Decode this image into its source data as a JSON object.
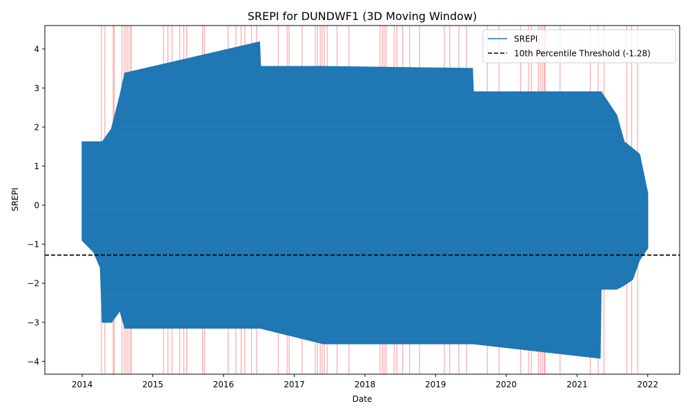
{
  "chart_data": {
    "type": "line",
    "title": "SREPI for DUNDWF1 (3D Moving Window)",
    "xlabel": "Date",
    "ylabel": "SREPI",
    "xlim": [
      "2013-06-22",
      "2022-06-15"
    ],
    "ylim": [
      -4.33,
      4.6
    ],
    "x_ticks": [
      "2014",
      "2015",
      "2016",
      "2017",
      "2018",
      "2019",
      "2020",
      "2021",
      "2022"
    ],
    "y_ticks": [
      -4,
      -3,
      -2,
      -1,
      0,
      1,
      2,
      3,
      4
    ],
    "grid": false,
    "legend": {
      "placement": "top-right",
      "entries": [
        "SREPI",
        "10th Percentile Threshold (-1.28)"
      ]
    },
    "colors": {
      "series": "#1f77b4",
      "threshold": "#000000",
      "highlight": "#ff0000"
    },
    "series": [
      {
        "name": "SREPI",
        "style": "solid",
        "envelope": [
          {
            "x": "2014-01-01",
            "low": -0.9,
            "high": 1.62
          },
          {
            "x": "2014-03-01",
            "low": -1.2,
            "high": 1.62
          },
          {
            "x": "2014-04-05",
            "low": -1.6,
            "high": 1.62
          },
          {
            "x": "2014-04-15",
            "low": -3.0,
            "high": 1.62
          },
          {
            "x": "2014-06-01",
            "low": -3.0,
            "high": 1.95
          },
          {
            "x": "2014-07-15",
            "low": -2.7,
            "high": 2.8
          },
          {
            "x": "2014-08-10",
            "low": -3.15,
            "high": 3.38
          },
          {
            "x": "2016-07-05",
            "low": -3.15,
            "high": 4.18
          },
          {
            "x": "2016-07-10",
            "low": -3.15,
            "high": 3.55
          },
          {
            "x": "2017-06-01",
            "low": -3.55,
            "high": 3.55
          },
          {
            "x": "2019-07-10",
            "low": -3.55,
            "high": 3.5
          },
          {
            "x": "2019-07-15",
            "low": -3.55,
            "high": 2.9
          },
          {
            "x": "2021-04-30",
            "low": -3.92,
            "high": 2.9
          },
          {
            "x": "2021-05-05",
            "low": -2.15,
            "high": 2.9
          },
          {
            "x": "2021-07-25",
            "low": -2.15,
            "high": 2.3
          },
          {
            "x": "2021-09-01",
            "low": -2.05,
            "high": 1.62
          },
          {
            "x": "2021-10-15",
            "low": -1.9,
            "high": 1.45
          },
          {
            "x": "2021-11-20",
            "low": -1.4,
            "high": 1.3
          },
          {
            "x": "2022-01-01",
            "low": -1.1,
            "high": 0.3
          }
        ]
      },
      {
        "name": "10th Percentile Threshold (-1.28)",
        "style": "dashed",
        "y": -1.28
      }
    ],
    "highlighted_dates": [
      "2014-04-10",
      "2014-04-28",
      "2014-06-10",
      "2014-06-15",
      "2014-07-25",
      "2014-08-05",
      "2014-08-15",
      "2014-08-25",
      "2014-09-05",
      "2014-09-12",
      "2015-02-25",
      "2015-03-20",
      "2015-04-10",
      "2015-05-20",
      "2015-06-10",
      "2015-06-25",
      "2015-09-15",
      "2015-09-25",
      "2016-01-25",
      "2016-03-05",
      "2016-04-01",
      "2016-04-20",
      "2016-05-25",
      "2016-06-20",
      "2016-10-10",
      "2016-11-25",
      "2016-12-05",
      "2017-02-10",
      "2017-04-20",
      "2017-05-01",
      "2017-05-15",
      "2017-05-25",
      "2017-06-05",
      "2017-06-20",
      "2017-08-10",
      "2017-10-10",
      "2018-03-20",
      "2018-04-01",
      "2018-04-10",
      "2018-04-20",
      "2018-06-01",
      "2018-06-15",
      "2018-07-15",
      "2018-08-20",
      "2018-10-10",
      "2019-02-15",
      "2019-03-15",
      "2019-05-01",
      "2019-06-10",
      "2019-09-25",
      "2019-11-25",
      "2020-03-15",
      "2020-04-25",
      "2020-05-10",
      "2020-06-15",
      "2020-06-25",
      "2020-07-05",
      "2020-07-15",
      "2020-07-20",
      "2020-10-05",
      "2021-03-10",
      "2021-04-20",
      "2021-05-20",
      "2021-09-15",
      "2021-10-10",
      "2021-11-10"
    ]
  }
}
